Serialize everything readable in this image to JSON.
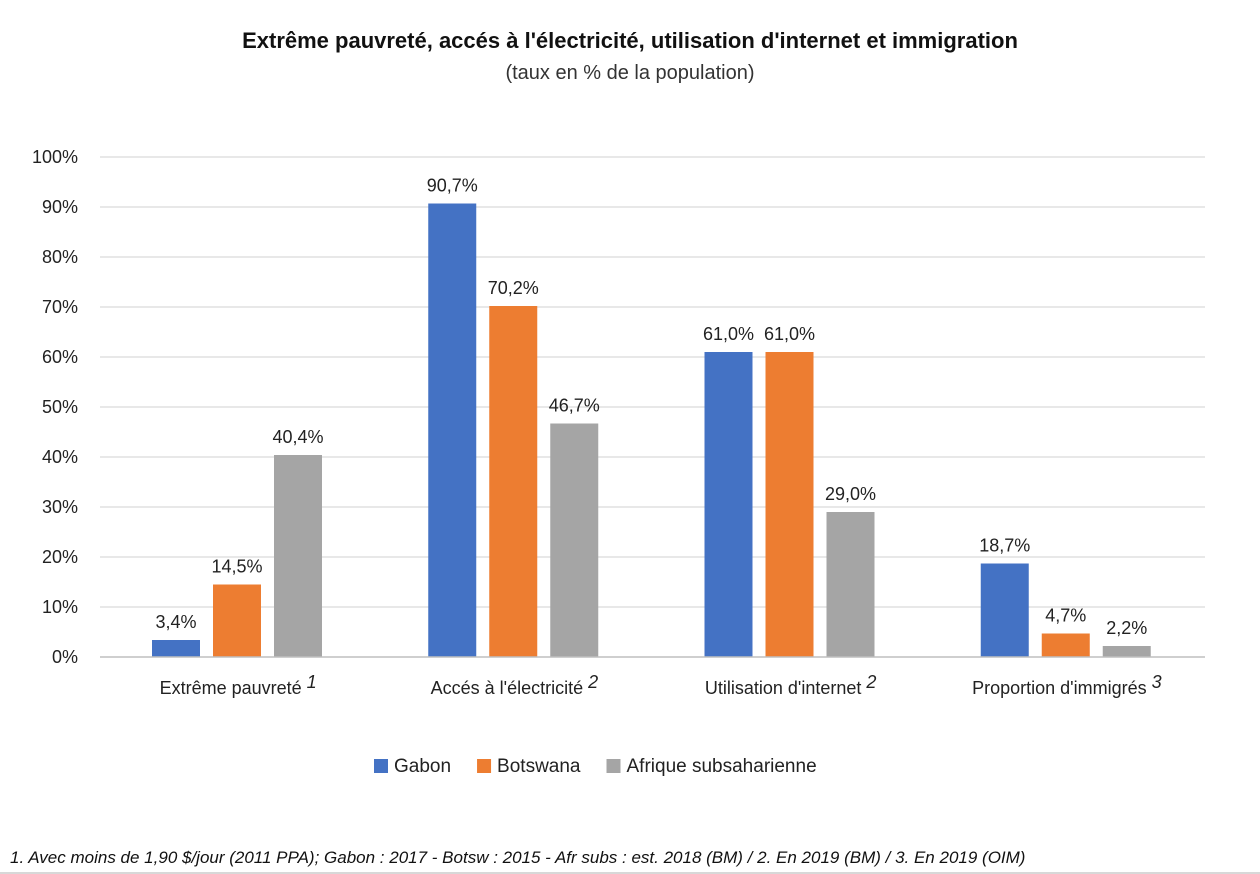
{
  "chart_data": {
    "type": "bar",
    "title": "Extrême pauvreté, accés à l'électricité, utilisation d'internet et immigration",
    "subtitle": "(taux en % de la population)",
    "categories": [
      "Extrême pauvreté",
      "Accés à l'électricité",
      "Utilisation d'internet",
      "Proportion d'immigrés"
    ],
    "category_notes": [
      "1",
      "2",
      "2",
      "3"
    ],
    "series": [
      {
        "name": "Gabon",
        "color": "#4472C4",
        "values": [
          3.4,
          90.7,
          61.0,
          18.7
        ],
        "labels": [
          "3,4%",
          "90,7%",
          "61,0%",
          "18,7%"
        ]
      },
      {
        "name": "Botswana",
        "color": "#ED7D31",
        "values": [
          14.5,
          70.2,
          61.0,
          4.7
        ],
        "labels": [
          "14,5%",
          "70,2%",
          "61,0%",
          "4,7%"
        ]
      },
      {
        "name": "Afrique subsaharienne",
        "color": "#A5A5A5",
        "values": [
          40.4,
          46.7,
          29.0,
          2.2
        ],
        "labels": [
          "40,4%",
          "46,7%",
          "29,0%",
          "2,2%"
        ]
      }
    ],
    "ylim": [
      0,
      100
    ],
    "yticks": [
      0,
      10,
      20,
      30,
      40,
      50,
      60,
      70,
      80,
      90,
      100
    ],
    "ytick_labels": [
      "0%",
      "10%",
      "20%",
      "30%",
      "40%",
      "50%",
      "60%",
      "70%",
      "80%",
      "90%",
      "100%"
    ],
    "grid": true,
    "legend_position": "bottom"
  },
  "footnote": "1. Avec moins de 1,90 $/jour (2011 PPA); Gabon : 2017 - Botsw : 2015 - Afr subs : est. 2018 (BM) / 2. En 2019 (BM) / 3. En 2019 (OIM)"
}
